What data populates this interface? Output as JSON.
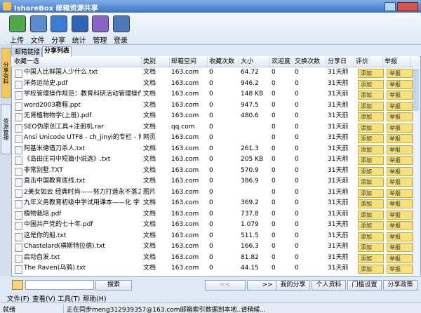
{
  "title": "IshareBox 邮箱资源共享",
  "toolbar": [
    "上传",
    "文件",
    "分享",
    "统计",
    "管理",
    "登录"
  ],
  "side_tabs": [
    "分享资料",
    "资源管理"
  ],
  "tabs": [
    "邮箱链接",
    "分享列表"
  ],
  "table": {
    "columns": [
      "收藏一选",
      "类别",
      "邮箱空间",
      "收藏次数",
      "大小",
      "欢迎度",
      "交换次数",
      "分享日",
      "评价",
      "举报"
    ],
    "rows": [
      [
        "中国人比鲜国人少什么.txt",
        "文档",
        "163.com",
        "0",
        "64.72",
        "0",
        "0",
        "31天前",
        "添加",
        "举报"
      ],
      [
        "洋务运动史.pdf",
        "文档",
        "163.com",
        "0",
        "946.2",
        "0",
        "0",
        "31天前",
        "添加",
        "举报"
      ],
      [
        "学校管理操作规范：教育科研活动管理操作...",
        "文档",
        "163.com",
        "0",
        "148 KB",
        "0",
        "0",
        "31天前",
        "添加",
        "举报"
      ],
      [
        "word2003教程.ppt",
        "文档",
        "163.com",
        "0",
        "947.5",
        "0",
        "0",
        "31天前",
        "添加",
        "举报"
      ],
      [
        "无肾植物物学(上册).pdf",
        "文档",
        "163.com",
        "0",
        "480.6",
        "0",
        "0",
        "31天前",
        "添加",
        "举报"
      ],
      [
        "SEO伪原创工具+注册机.rar",
        "文档",
        "qq.com",
        "0",
        "",
        "0",
        "0",
        "31天前",
        "添加",
        "举报"
      ],
      [
        "Ansi Unicode UTF8 - ch_jinyi的专栏 - 博...",
        "网页",
        "163.com",
        "0",
        "",
        "0",
        "0",
        "31天前",
        "添加",
        "举报"
      ],
      [
        "阿基米德借刀杀人.txt",
        "文档",
        "163.com",
        "0",
        "261.3",
        "0",
        "0",
        "31天前",
        "添加",
        "举报"
      ],
      [
        "《岛田庄司中短篇小说选》.txt",
        "文档",
        "163.com",
        "0",
        "205 KB",
        "0",
        "0",
        "31天前",
        "添加",
        "举报"
      ],
      [
        "非常别墅.TXT",
        "文档",
        "163.com",
        "0",
        "570.9",
        "0",
        "0",
        "31天前",
        "添加",
        "举报"
      ],
      [
        "直击中国教育底线.txt",
        "文档",
        "163.com",
        "0",
        "386.9",
        "0",
        "0",
        "31天前",
        "添加",
        "举报"
      ],
      [
        "2美女如云 经典时尚——努力打造永不落之...",
        "图片",
        "163.com",
        "0",
        "",
        "0",
        "0",
        "31天前",
        "添加",
        "举报"
      ],
      [
        "九年义务教育初级中学试用课本——化 学 ...",
        "文档",
        "163.com",
        "0",
        "369.2",
        "0",
        "0",
        "31天前",
        "添加",
        "举报"
      ],
      [
        "植物栽培.pdf",
        "文档",
        "163.com",
        "0",
        "737.8",
        "0",
        "0",
        "31天前",
        "添加",
        "举报"
      ],
      [
        "中国共产党的七十年.pdf",
        "文档",
        "163.com",
        "0",
        "1.079",
        "0",
        "0",
        "31天前",
        "添加",
        "举报"
      ],
      [
        "这是你的船.txt",
        "文档",
        "163.com",
        "0",
        "511.5",
        "0",
        "0",
        "31天前",
        "添加",
        "举报"
      ],
      [
        "Chastelard(横斯特拉德).txt",
        "文档",
        "163.com",
        "0",
        "166.3",
        "0",
        "0",
        "31天前",
        "添加",
        "举报"
      ],
      [
        "启动自发.txt",
        "文档",
        "163.com",
        "0",
        "81.82",
        "0",
        "0",
        "31天前",
        "添加",
        "举报"
      ],
      [
        "The Raven(乌鸦).txt",
        "文档",
        "163.com",
        "0",
        "44.15",
        "0",
        "0",
        "31天前",
        "添加",
        "举报"
      ]
    ]
  },
  "search_button": "搜索",
  "nav": [
    "<<",
    ">>"
  ],
  "bottom_buttons": [
    "我的分享",
    "个人资料",
    "门槛设置",
    "分享政策"
  ],
  "menu": [
    "文件(F)",
    "查看(V)",
    "工具(T)",
    "帮助(H)"
  ],
  "status": {
    "left": "就绪",
    "message": "正在同步meng312939357@163.com邮箱索引数据到本地..请稍候..."
  }
}
